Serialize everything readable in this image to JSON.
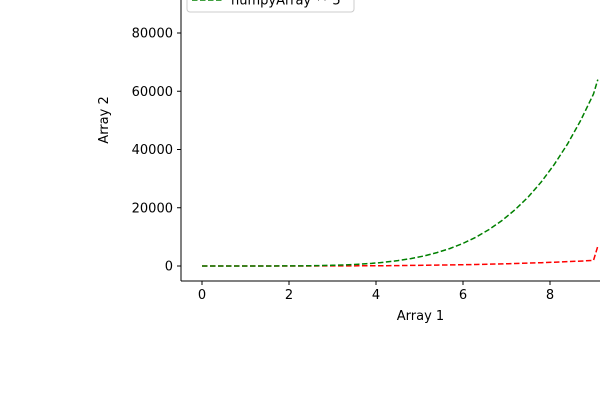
{
  "chart_data": {
    "type": "line",
    "title": "",
    "xlabel": "Array 1",
    "ylabel": "Array 2",
    "xlim": [
      -0.5,
      9.1
    ],
    "ylim": [
      -5000,
      92000
    ],
    "xticks": [
      0,
      2,
      4,
      6,
      8
    ],
    "yticks": [
      0,
      20000,
      40000,
      60000,
      80000
    ],
    "grid": false,
    "legend_position": "top-left",
    "x": [
      0,
      0.3,
      0.6,
      0.9,
      1.2,
      1.5,
      1.8,
      2.1,
      2.4,
      2.7,
      3.0,
      3.3,
      3.6,
      3.9,
      4.2,
      4.5,
      4.8,
      5.1,
      5.4,
      5.7,
      6.0,
      6.3,
      6.6,
      6.9,
      7.2,
      7.5,
      7.8,
      8.1,
      8.4,
      8.7,
      9.0,
      9.1
    ],
    "series": [
      {
        "name": "",
        "color": "#ff0000",
        "style": "dashed",
        "values": [
          0,
          0,
          0,
          1,
          2,
          8,
          19,
          39,
          80,
          143,
          243,
          391,
          605,
          902,
          1307,
          1845,
          2548,
          3450,
          4592,
          6017,
          7776,
          9924,
          12523,
          15640,
          19349,
          23730,
          28870,
          34868,
          41822,
          49838,
          59049,
          62403
        ]
      },
      {
        "name": "",
        "color": "#ff0000",
        "style": "dashed",
        "values": [
          0,
          0,
          0,
          0,
          0,
          2,
          4,
          8,
          14,
          22,
          32,
          46,
          64,
          87,
          115,
          149,
          191,
          239,
          296,
          362,
          435,
          522,
          619,
          729,
          852,
          989,
          1141,
          1309,
          1494,
          1696,
          1917,
          6800
        ]
      },
      {
        "name": "numpyArray ** 5",
        "color": "#008000",
        "style": "dashed",
        "values": [
          0,
          0,
          0,
          1,
          2,
          8,
          19,
          41,
          80,
          143,
          243,
          391,
          605,
          902,
          1307,
          1845,
          2548,
          3450,
          4592,
          6017,
          7776,
          9924,
          12523,
          15640,
          19349,
          23730,
          28870,
          34868,
          41822,
          49838,
          59049,
          64000
        ]
      }
    ]
  }
}
